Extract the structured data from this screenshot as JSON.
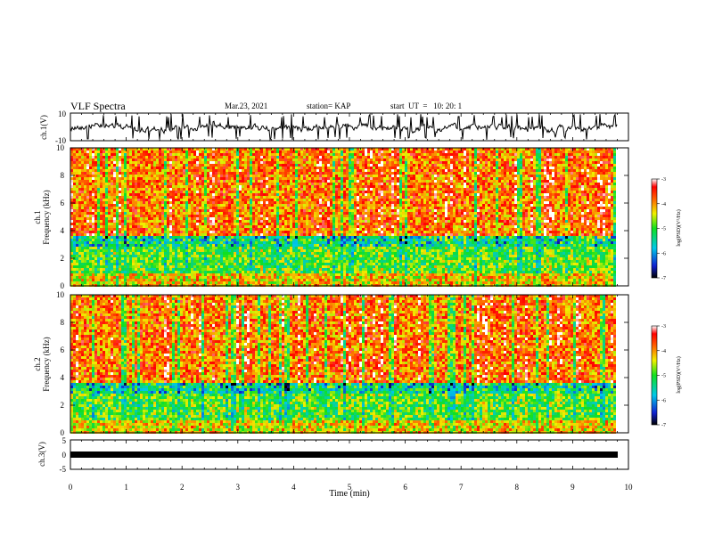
{
  "header": {
    "title": "VLF Spectra",
    "date": "Mar.23, 2021",
    "station": "station= KAP",
    "start": "start  UT  =   10: 20: 1"
  },
  "chart_data": [
    {
      "type": "line",
      "ylabel": "ch.1(V)",
      "ylim": [
        -10,
        10
      ],
      "yticks": [
        "10",
        "-10"
      ],
      "xlim": [
        0,
        10
      ],
      "description_free": true
    },
    {
      "type": "heatmap",
      "ylabel_line1": "ch.1",
      "ylabel_line2": "Frequency (kHz)",
      "ylim": [
        0,
        10
      ],
      "yticks": [
        "0",
        "2",
        "4",
        "6",
        "8",
        "10"
      ],
      "xlim": [
        0,
        10
      ],
      "colorbar": {
        "label": "log(PSD)(V²/Hz)",
        "ticks": [
          "-3",
          "-4",
          "-5",
          "-6",
          "-7"
        ],
        "range": [
          -7,
          -3
        ]
      }
    },
    {
      "type": "heatmap",
      "ylabel_line1": "ch.2",
      "ylabel_line2": "Frequency (kHz)",
      "ylim": [
        0,
        10
      ],
      "yticks": [
        "0",
        "2",
        "4",
        "6",
        "8",
        "10"
      ],
      "xlim": [
        0,
        10
      ],
      "colorbar": {
        "label": "log(PSD)(V²/Hz)",
        "ticks": [
          "-3",
          "-4",
          "-5",
          "-6",
          "-7"
        ],
        "range": [
          -7,
          -3
        ]
      }
    },
    {
      "type": "line",
      "ylabel": "ch.3(V)",
      "ylim": [
        -5,
        5
      ],
      "yticks": [
        "5",
        "0",
        "-5"
      ],
      "xlim": [
        0,
        10
      ],
      "xlabel": "Time (min)",
      "xticks": [
        "0",
        "1",
        "2",
        "3",
        "4",
        "5",
        "6",
        "7",
        "8",
        "9",
        "10"
      ]
    }
  ]
}
